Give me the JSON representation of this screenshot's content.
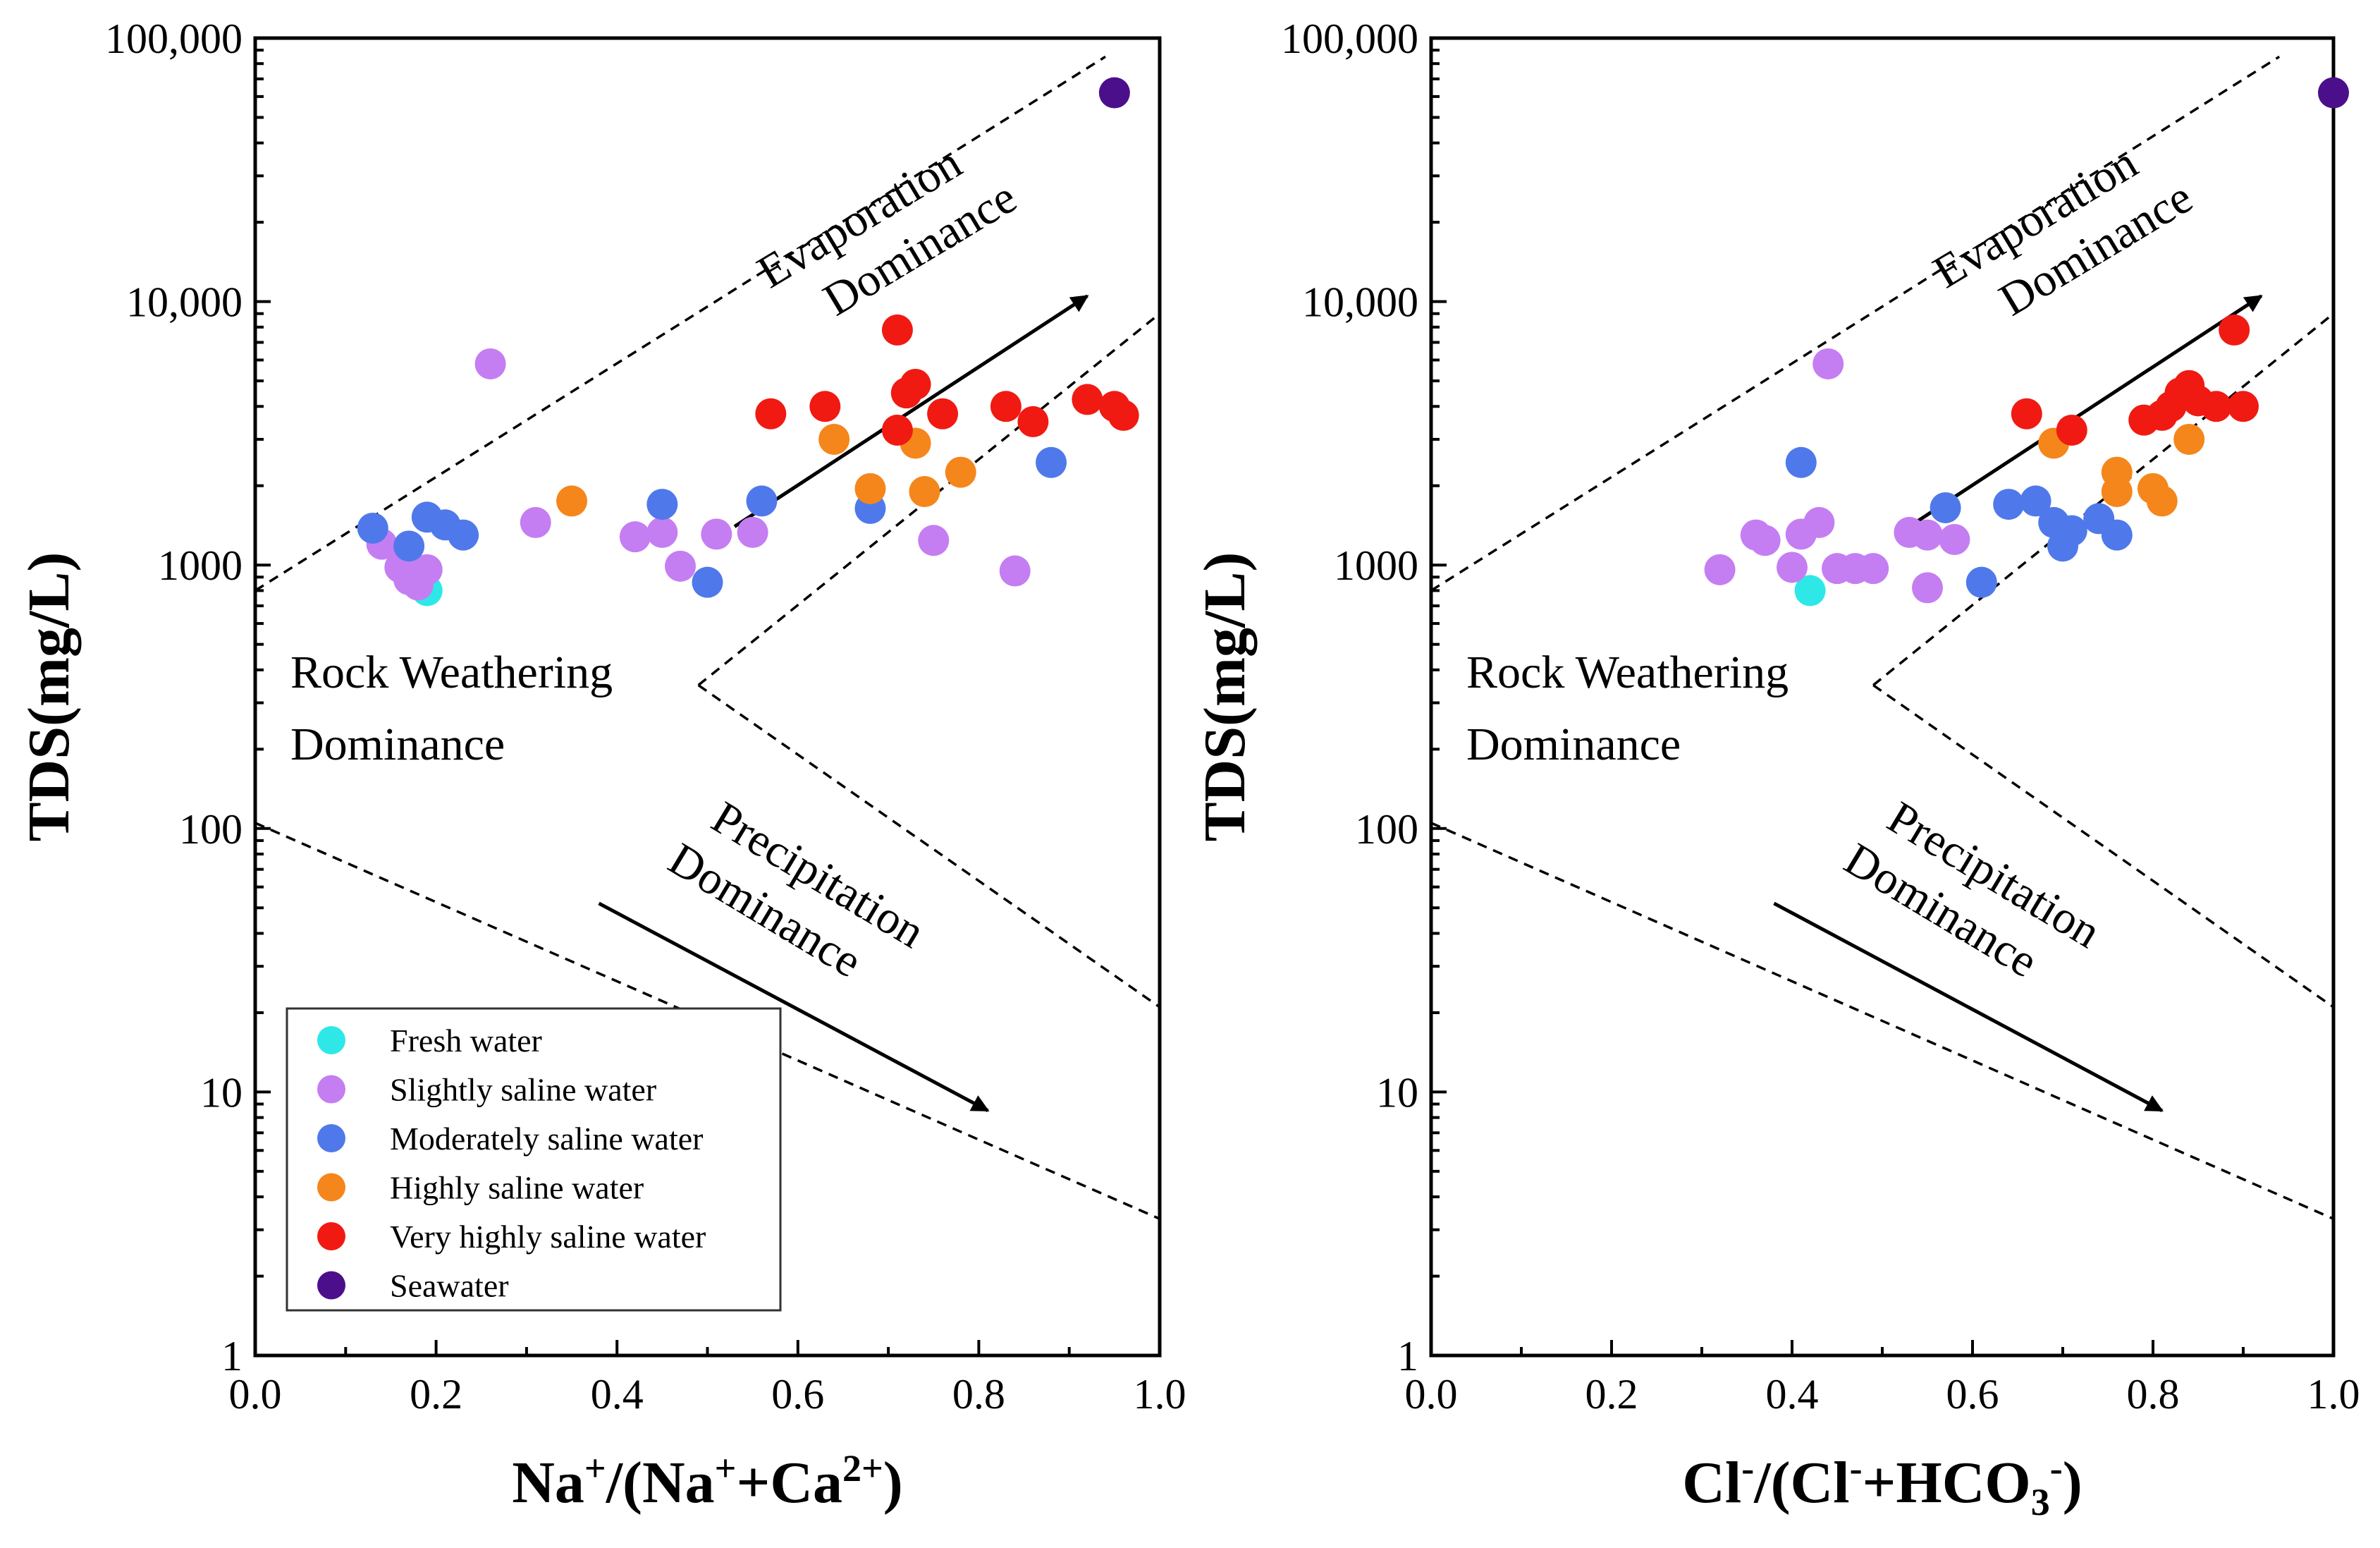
{
  "chart_data": [
    {
      "type": "scatter",
      "id": "left",
      "xlabel": "Na+/(Na++Ca2+)",
      "xlabel_parts": {
        "a": "Na",
        "a_sup": "+",
        "b": "/(Na",
        "b_sup": "+",
        "c": "+Ca",
        "c_sup": "2+",
        "d": ")"
      },
      "ylabel": "TDS(mg/L)",
      "xlim": [
        0,
        1
      ],
      "ylim": [
        1,
        100000
      ],
      "yscale": "log",
      "xticks": [
        "0.0",
        "0.2",
        "0.4",
        "0.6",
        "0.8",
        "1.0"
      ],
      "yticks": [
        {
          "value": 1,
          "label": "1"
        },
        {
          "value": 10,
          "label": "10"
        },
        {
          "value": 100,
          "label": "100"
        },
        {
          "value": 1000,
          "label": "1000"
        },
        {
          "value": 10000,
          "label": "10,000"
        },
        {
          "value": 100000,
          "label": "100,000"
        }
      ],
      "regions": {
        "evaporation": [
          "Evaporation",
          "Dominance"
        ],
        "rock": [
          "Rock Weathering",
          "Dominance"
        ],
        "precipitation": [
          "Precipitation",
          "Dominance"
        ]
      },
      "boundaries": [
        {
          "from": [
            0.0,
            800
          ],
          "to": [
            0.94,
            85000
          ]
        },
        {
          "from": [
            0.49,
            350
          ],
          "to": [
            1.0,
            9000
          ]
        },
        {
          "from": [
            0.49,
            350
          ],
          "to": [
            1.0,
            21
          ]
        },
        {
          "from": [
            0.0,
            105
          ],
          "to": [
            1.0,
            3.3
          ]
        }
      ],
      "arrows": [
        {
          "from": [
            0.53,
            1400
          ],
          "to": [
            0.92,
            10500
          ]
        },
        {
          "from": [
            0.38,
            52
          ],
          "to": [
            0.81,
            8.5
          ]
        }
      ],
      "series": [
        {
          "name": "Fresh water",
          "color": "#2ee8e8",
          "points": [
            [
              0.19,
              800
            ]
          ]
        },
        {
          "name": "Slightly saline water",
          "color": "#c47ef2",
          "points": [
            [
              0.14,
              1200
            ],
            [
              0.16,
              980
            ],
            [
              0.17,
              880
            ],
            [
              0.18,
              840
            ],
            [
              0.19,
              960
            ],
            [
              0.26,
              5800
            ],
            [
              0.31,
              1450
            ],
            [
              0.42,
              1280
            ],
            [
              0.45,
              1330
            ],
            [
              0.47,
              990
            ],
            [
              0.51,
              1310
            ],
            [
              0.55,
              1330
            ],
            [
              0.75,
              1240
            ],
            [
              0.84,
              950
            ]
          ]
        },
        {
          "name": "Moderately saline water",
          "color": "#4f79ea",
          "points": [
            [
              0.13,
              1380
            ],
            [
              0.17,
              1180
            ],
            [
              0.19,
              1520
            ],
            [
              0.21,
              1420
            ],
            [
              0.23,
              1300
            ],
            [
              0.45,
              1700
            ],
            [
              0.5,
              860
            ],
            [
              0.56,
              1750
            ],
            [
              0.68,
              1640
            ],
            [
              0.88,
              2450
            ]
          ]
        },
        {
          "name": "Highly saline water",
          "color": "#f5861b",
          "points": [
            [
              0.35,
              1750
            ],
            [
              0.64,
              3000
            ],
            [
              0.68,
              1950
            ],
            [
              0.73,
              2900
            ],
            [
              0.74,
              1900
            ],
            [
              0.78,
              2250
            ]
          ]
        },
        {
          "name": "Very highly saline water",
          "color": "#f01a12",
          "points": [
            [
              0.57,
              3750
            ],
            [
              0.63,
              4000
            ],
            [
              0.71,
              7800
            ],
            [
              0.71,
              3250
            ],
            [
              0.72,
              4500
            ],
            [
              0.73,
              4850
            ],
            [
              0.76,
              3750
            ],
            [
              0.83,
              4000
            ],
            [
              0.86,
              3500
            ],
            [
              0.92,
              4250
            ],
            [
              0.95,
              4000
            ],
            [
              0.96,
              3700
            ]
          ]
        },
        {
          "name": "Seawater",
          "color": "#4b0f8c",
          "points": [
            [
              0.95,
              62000
            ]
          ]
        }
      ]
    },
    {
      "type": "scatter",
      "id": "right",
      "xlabel": "Cl-/(Cl-+HCO3-)",
      "xlabel_parts": {
        "a": "Cl",
        "a_sup": "-",
        "b": "/(Cl",
        "b_sup": "-",
        "c": "+HCO",
        "c_sub": "3",
        "c_sup": "-",
        "d": ")"
      },
      "ylabel": "TDS(mg/L)",
      "xlim": [
        0,
        1
      ],
      "ylim": [
        1,
        100000
      ],
      "yscale": "log",
      "xticks": [
        "0.0",
        "0.2",
        "0.4",
        "0.6",
        "0.8",
        "1.0"
      ],
      "yticks": [
        {
          "value": 1,
          "label": "1"
        },
        {
          "value": 10,
          "label": "10"
        },
        {
          "value": 100,
          "label": "100"
        },
        {
          "value": 1000,
          "label": "1000"
        },
        {
          "value": 10000,
          "label": "10,000"
        },
        {
          "value": 100000,
          "label": "100,000"
        }
      ],
      "regions": {
        "evaporation": [
          "Evaporation",
          "Dominance"
        ],
        "rock": [
          "Rock Weathering",
          "Dominance"
        ],
        "precipitation": [
          "Precipitation",
          "Dominance"
        ]
      },
      "boundaries": [
        {
          "from": [
            0.0,
            800
          ],
          "to": [
            0.94,
            85000
          ]
        },
        {
          "from": [
            0.49,
            350
          ],
          "to": [
            1.0,
            9000
          ]
        },
        {
          "from": [
            0.49,
            350
          ],
          "to": [
            1.0,
            21
          ]
        },
        {
          "from": [
            0.0,
            105
          ],
          "to": [
            1.0,
            3.3
          ]
        }
      ],
      "arrows": [
        {
          "from": [
            0.53,
            1400
          ],
          "to": [
            0.92,
            10500
          ]
        },
        {
          "from": [
            0.38,
            52
          ],
          "to": [
            0.81,
            8.5
          ]
        }
      ],
      "series": [
        {
          "name": "Fresh water",
          "color": "#2ee8e8",
          "points": [
            [
              0.42,
              800
            ]
          ]
        },
        {
          "name": "Slightly saline water",
          "color": "#c47ef2",
          "points": [
            [
              0.32,
              960
            ],
            [
              0.36,
              1300
            ],
            [
              0.37,
              1240
            ],
            [
              0.4,
              980
            ],
            [
              0.41,
              1310
            ],
            [
              0.43,
              1450
            ],
            [
              0.44,
              5800
            ],
            [
              0.45,
              970
            ],
            [
              0.47,
              970
            ],
            [
              0.49,
              970
            ],
            [
              0.53,
              1330
            ],
            [
              0.55,
              1300
            ],
            [
              0.55,
              820
            ],
            [
              0.58,
              1250
            ]
          ]
        },
        {
          "name": "Moderately saline water",
          "color": "#4f79ea",
          "points": [
            [
              0.41,
              2450
            ],
            [
              0.57,
              1650
            ],
            [
              0.61,
              860
            ],
            [
              0.64,
              1700
            ],
            [
              0.67,
              1750
            ],
            [
              0.69,
              1450
            ],
            [
              0.7,
              1180
            ],
            [
              0.71,
              1350
            ],
            [
              0.74,
              1500
            ],
            [
              0.76,
              1300
            ]
          ]
        },
        {
          "name": "Highly saline water",
          "color": "#f5861b",
          "points": [
            [
              0.69,
              2900
            ],
            [
              0.76,
              2250
            ],
            [
              0.76,
              1900
            ],
            [
              0.8,
              1950
            ],
            [
              0.81,
              1750
            ],
            [
              0.84,
              3000
            ]
          ]
        },
        {
          "name": "Very highly saline water",
          "color": "#f01a12",
          "points": [
            [
              0.66,
              3750
            ],
            [
              0.71,
              3250
            ],
            [
              0.79,
              3550
            ],
            [
              0.81,
              3700
            ],
            [
              0.82,
              4000
            ],
            [
              0.83,
              4500
            ],
            [
              0.84,
              4800
            ],
            [
              0.85,
              4200
            ],
            [
              0.87,
              4000
            ],
            [
              0.89,
              7800
            ],
            [
              0.9,
              4000
            ]
          ]
        },
        {
          "name": "Seawater",
          "color": "#4b0f8c",
          "points": [
            [
              1.0,
              62000
            ]
          ]
        }
      ]
    }
  ],
  "legend": {
    "placement": "bottom-left of left panel",
    "items": [
      {
        "label": "Fresh water",
        "color": "#2ee8e8"
      },
      {
        "label": "Slightly saline water",
        "color": "#c47ef2"
      },
      {
        "label": "Moderately saline water",
        "color": "#4f79ea"
      },
      {
        "label": "Highly saline water",
        "color": "#f5861b"
      },
      {
        "label": "Very highly saline water",
        "color": "#f01a12"
      },
      {
        "label": "Seawater",
        "color": "#4b0f8c"
      }
    ]
  }
}
